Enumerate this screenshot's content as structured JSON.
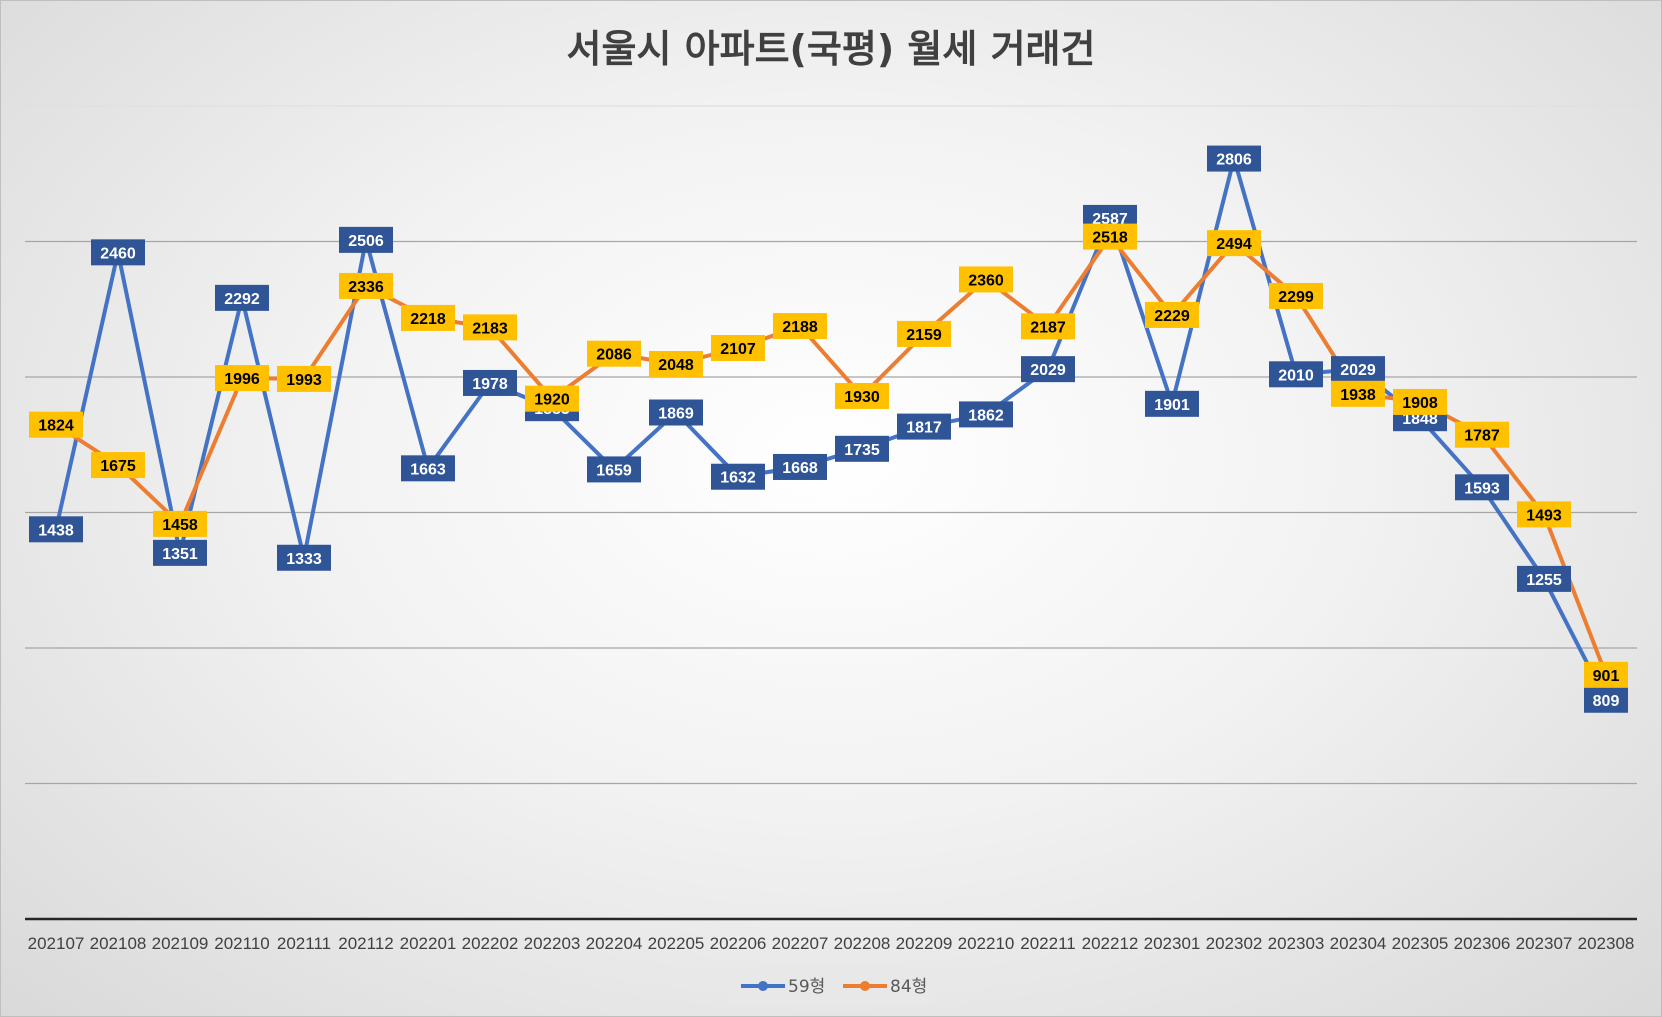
{
  "chart_data": {
    "type": "line",
    "title": "서울시 아파트(국평) 월세 거래건",
    "xlabel": "",
    "ylabel": "",
    "ylim": [
      0,
      3000
    ],
    "gridlines": true,
    "legend": "bottom-center",
    "categories": [
      "202107",
      "202108",
      "202109",
      "202110",
      "202111",
      "202112",
      "202201",
      "202202",
      "202203",
      "202204",
      "202205",
      "202206",
      "202207",
      "202208",
      "202209",
      "202210",
      "202211",
      "202212",
      "202301",
      "202302",
      "202303",
      "202304",
      "202305",
      "202306",
      "202307",
      "202308"
    ],
    "series": [
      {
        "name": "59형",
        "color": "#4472C4",
        "label_bg": "#2F5597",
        "label_fg": "#FFFFFF",
        "values": [
          1438,
          2460,
          1351,
          2292,
          1333,
          2506,
          1663,
          1978,
          1885,
          1659,
          1869,
          1632,
          1668,
          1735,
          1817,
          1862,
          2029,
          2587,
          1901,
          2806,
          2010,
          2029,
          1848,
          1593,
          1255,
          809
        ]
      },
      {
        "name": "84형",
        "color": "#ED7D31",
        "label_bg": "#FFC000",
        "label_fg": "#000000",
        "values": [
          1824,
          1675,
          1458,
          1996,
          1993,
          2336,
          2218,
          2183,
          1920,
          2086,
          2048,
          2107,
          2188,
          1930,
          2159,
          2360,
          2187,
          2518,
          2229,
          2494,
          2299,
          1938,
          1908,
          1787,
          1493,
          901
        ]
      }
    ]
  }
}
